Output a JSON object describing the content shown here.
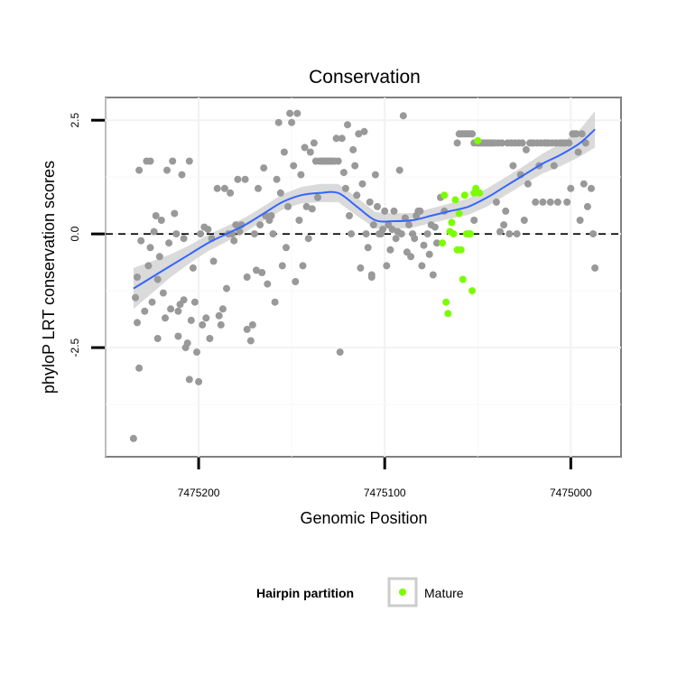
{
  "chart_data": {
    "type": "scatter",
    "title": "Conservation",
    "xlabel": "Genomic Position",
    "ylabel": "phyloP LRT conservation scores",
    "x_reversed": true,
    "xlim": [
      7475250,
      7474973
    ],
    "ylim": [
      -4.9,
      3.0
    ],
    "x_ticks": [
      7475200,
      7475100,
      7475000
    ],
    "x_tick_labels": [
      "7475200",
      "7475100",
      "7475000"
    ],
    "y_ticks": [
      2.5,
      0.0,
      -2.5
    ],
    "y_tick_labels": [
      "2.5",
      "0.0",
      "-2.5"
    ],
    "reference_line": {
      "y": 0.0,
      "style": "dashed"
    },
    "grid": true,
    "legend": {
      "title": "Hairpin partition",
      "position": "bottom",
      "entries": [
        {
          "label": "Mature",
          "color": "#7cfc00"
        }
      ]
    },
    "colors": {
      "default_points": "#999999",
      "mature": "#7cfc00",
      "smooth_line": "#3366ff",
      "ribbon": "#d4d4d4"
    },
    "series": [
      {
        "color": "#999999",
        "points": [
          [
            7475235,
            -4.5
          ],
          [
            7475234,
            -1.4
          ],
          [
            7475233,
            -1.95
          ],
          [
            7475233,
            -0.95
          ],
          [
            7475232,
            -2.95
          ],
          [
            7475232,
            1.4
          ],
          [
            7475231,
            -0.15
          ],
          [
            7475229,
            -1.7
          ],
          [
            7475228,
            1.6
          ],
          [
            7475227,
            -0.7
          ],
          [
            7475226,
            -0.3
          ],
          [
            7475226,
            1.6
          ],
          [
            7475225,
            -1.5
          ],
          [
            7475224,
            0.05
          ],
          [
            7475223,
            0.4
          ],
          [
            7475222,
            -2.3
          ],
          [
            7475222,
            -1.0
          ],
          [
            7475221,
            -0.5
          ],
          [
            7475220,
            0.3
          ],
          [
            7475219,
            -1.3
          ],
          [
            7475218,
            -1.85
          ],
          [
            7475217,
            1.4
          ],
          [
            7475216,
            -0.2
          ],
          [
            7475215,
            -1.65
          ],
          [
            7475214,
            1.6
          ],
          [
            7475213,
            0.45
          ],
          [
            7475212,
            0.0
          ],
          [
            7475211,
            -2.25
          ],
          [
            7475211,
            -1.7
          ],
          [
            7475210,
            -1.55
          ],
          [
            7475209,
            1.3
          ],
          [
            7475208,
            -0.1
          ],
          [
            7475208,
            -1.45
          ],
          [
            7475207,
            -2.5
          ],
          [
            7475206,
            -2.4
          ],
          [
            7475205,
            -3.2
          ],
          [
            7475205,
            1.6
          ],
          [
            7475204,
            -1.9
          ],
          [
            7475203,
            -0.75
          ],
          [
            7475202,
            -1.5
          ],
          [
            7475201,
            -2.6
          ],
          [
            7475200,
            -3.25
          ],
          [
            7475199,
            0.0
          ],
          [
            7475198,
            -2.0
          ],
          [
            7475197,
            0.15
          ],
          [
            7475196,
            -1.85
          ],
          [
            7475195,
            0.1
          ],
          [
            7475194,
            -2.3
          ],
          [
            7475193,
            -0.1
          ],
          [
            7475192,
            -0.6
          ],
          [
            7475190,
            1.0
          ],
          [
            7475189,
            -1.8
          ],
          [
            7475188,
            -2.0
          ],
          [
            7475187,
            -1.65
          ],
          [
            7475186,
            1.0
          ],
          [
            7475185,
            -1.2
          ],
          [
            7475184,
            0.0
          ],
          [
            7475183,
            0.9
          ],
          [
            7475182,
            0.0
          ],
          [
            7475181,
            -0.15
          ],
          [
            7475180,
            0.2
          ],
          [
            7475179,
            1.2
          ],
          [
            7475178,
            0.05
          ],
          [
            7475177,
            0.2
          ],
          [
            7475175,
            1.2
          ],
          [
            7475174,
            -0.95
          ],
          [
            7475174,
            -2.1
          ],
          [
            7475172,
            -2.35
          ],
          [
            7475171,
            -2.0
          ],
          [
            7475170,
            0.0
          ],
          [
            7475169,
            -0.8
          ],
          [
            7475168,
            1.0
          ],
          [
            7475167,
            0.2
          ],
          [
            7475166,
            -0.85
          ],
          [
            7475165,
            1.45
          ],
          [
            7475164,
            0.4
          ],
          [
            7475163,
            -1.1
          ],
          [
            7475162,
            0.3
          ],
          [
            7475161,
            0.4
          ],
          [
            7475160,
            0.0
          ],
          [
            7475159,
            -1.5
          ],
          [
            7475158,
            1.2
          ],
          [
            7475157,
            2.45
          ],
          [
            7475156,
            0.9
          ],
          [
            7475155,
            -0.7
          ],
          [
            7475154,
            1.8
          ],
          [
            7475153,
            -0.3
          ],
          [
            7475152,
            0.6
          ],
          [
            7475151,
            2.65
          ],
          [
            7475150,
            2.45
          ],
          [
            7475149,
            1.5
          ],
          [
            7475148,
            -1.05
          ],
          [
            7475147,
            2.65
          ],
          [
            7475146,
            0.3
          ],
          [
            7475145,
            1.3
          ],
          [
            7475144,
            -0.7
          ],
          [
            7475143,
            1.9
          ],
          [
            7475142,
            0.6
          ],
          [
            7475141,
            -0.1
          ],
          [
            7475140,
            1.8
          ],
          [
            7475139,
            0.55
          ],
          [
            7475138,
            2.0
          ],
          [
            7475137,
            1.6
          ],
          [
            7475136,
            0.8
          ],
          [
            7475135,
            1.6
          ],
          [
            7475134,
            1.6
          ],
          [
            7475133,
            1.6
          ],
          [
            7475132,
            1.6
          ],
          [
            7475131,
            1.6
          ],
          [
            7475130,
            1.6
          ],
          [
            7475129,
            1.6
          ],
          [
            7475128,
            1.6
          ],
          [
            7475127,
            1.6
          ],
          [
            7475126,
            2.1
          ],
          [
            7475125,
            1.6
          ],
          [
            7475124,
            -2.6
          ],
          [
            7475123,
            2.1
          ],
          [
            7475122,
            1.35
          ],
          [
            7475121,
            1.0
          ],
          [
            7475120,
            2.4
          ],
          [
            7475119,
            0.4
          ],
          [
            7475118,
            0.0
          ],
          [
            7475117,
            1.85
          ],
          [
            7475116,
            1.5
          ],
          [
            7475115,
            0.85
          ],
          [
            7475114,
            2.2
          ],
          [
            7475113,
            -0.75
          ],
          [
            7475112,
            1.1
          ],
          [
            7475111,
            2.25
          ],
          [
            7475110,
            0.0
          ],
          [
            7475109,
            -0.3
          ],
          [
            7475108,
            0.7
          ],
          [
            7475107,
            -0.9
          ],
          [
            7475107,
            -0.95
          ],
          [
            7475106,
            0.2
          ],
          [
            7475105,
            1.3
          ],
          [
            7475104,
            0.6
          ],
          [
            7475103,
            0.0
          ],
          [
            7475102,
            0.0
          ],
          [
            7475101,
            0.1
          ],
          [
            7475100,
            0.5
          ],
          [
            7475099,
            -0.7
          ],
          [
            7475098,
            0.2
          ],
          [
            7475097,
            -0.35
          ],
          [
            7475096,
            0.1
          ],
          [
            7475095,
            0.5
          ],
          [
            7475094,
            -0.1
          ],
          [
            7475093,
            0.05
          ],
          [
            7475092,
            1.4
          ],
          [
            7475091,
            0.0
          ],
          [
            7475090,
            2.6
          ],
          [
            7475089,
            0.35
          ],
          [
            7475088,
            -0.4
          ],
          [
            7475087,
            0.2
          ],
          [
            7475086,
            -0.5
          ],
          [
            7475085,
            0.0
          ],
          [
            7475084,
            -0.1
          ],
          [
            7475083,
            0.4
          ],
          [
            7475082,
            0.5
          ],
          [
            7475081,
            0.5
          ],
          [
            7475080,
            -0.7
          ],
          [
            7475079,
            -0.25
          ],
          [
            7475077,
            0.0
          ],
          [
            7475076,
            -0.45
          ],
          [
            7475075,
            0.2
          ],
          [
            7475074,
            -0.9
          ],
          [
            7475073,
            0.15
          ],
          [
            7475072,
            -0.2
          ],
          [
            7475070,
            0.8
          ],
          [
            7475068,
            0.5
          ],
          [
            7475061,
            2.0
          ],
          [
            7475060,
            2.2
          ],
          [
            7475059,
            2.2
          ],
          [
            7475058,
            2.2
          ],
          [
            7475057,
            2.2
          ],
          [
            7475056,
            2.2
          ],
          [
            7475055,
            2.2
          ],
          [
            7475054,
            2.2
          ],
          [
            7475053,
            2.2
          ],
          [
            7475052,
            2.0
          ],
          [
            7475052,
            0.3
          ],
          [
            7475051,
            0.95
          ],
          [
            7475050,
            2.0
          ],
          [
            7475049,
            2.0
          ],
          [
            7475048,
            2.0
          ],
          [
            7475047,
            2.0
          ],
          [
            7475046,
            2.0
          ],
          [
            7475045,
            2.0
          ],
          [
            7475044,
            2.0
          ],
          [
            7475043,
            2.0
          ],
          [
            7475042,
            2.0
          ],
          [
            7475041,
            2.0
          ],
          [
            7475040,
            0.7
          ],
          [
            7475039,
            2.0
          ],
          [
            7475038,
            0.05
          ],
          [
            7475037,
            2.0
          ],
          [
            7475036,
            0.2
          ],
          [
            7475035,
            0.5
          ],
          [
            7475034,
            2.0
          ],
          [
            7475033,
            0.0
          ],
          [
            7475032,
            2.0
          ],
          [
            7475031,
            1.5
          ],
          [
            7475030,
            2.0
          ],
          [
            7475029,
            0.0
          ],
          [
            7475028,
            2.0
          ],
          [
            7475027,
            1.3
          ],
          [
            7475026,
            2.0
          ],
          [
            7475025,
            0.3
          ],
          [
            7475024,
            1.85
          ],
          [
            7475023,
            1.1
          ],
          [
            7475022,
            2.0
          ],
          [
            7475021,
            2.0
          ],
          [
            7475020,
            2.0
          ],
          [
            7475019,
            0.7
          ],
          [
            7475018,
            2.0
          ],
          [
            7475017,
            1.5
          ],
          [
            7475016,
            2.0
          ],
          [
            7475015,
            0.7
          ],
          [
            7475014,
            2.0
          ],
          [
            7475013,
            2.0
          ],
          [
            7475012,
            2.0
          ],
          [
            7475011,
            0.7
          ],
          [
            7475010,
            2.0
          ],
          [
            7475009,
            1.5
          ],
          [
            7475008,
            2.0
          ],
          [
            7475007,
            0.7
          ],
          [
            7475006,
            2.0
          ],
          [
            7475005,
            2.0
          ],
          [
            7475004,
            2.0
          ],
          [
            7475003,
            2.0
          ],
          [
            7475002,
            0.7
          ],
          [
            7475001,
            2.0
          ],
          [
            7475000,
            1.0
          ],
          [
            7474999,
            2.2
          ],
          [
            7474998,
            2.2
          ],
          [
            7474997,
            2.2
          ],
          [
            7474996,
            1.8
          ],
          [
            7474995,
            0.3
          ],
          [
            7474994,
            2.2
          ],
          [
            7474993,
            1.1
          ],
          [
            7474992,
            2.0
          ],
          [
            7474991,
            0.6
          ],
          [
            7474989,
            1.0
          ],
          [
            7474988,
            0.0
          ],
          [
            7474987,
            -0.75
          ]
        ]
      },
      {
        "name": "Mature",
        "color": "#7cfc00",
        "points": [
          [
            7475069,
            -0.2
          ],
          [
            7475068,
            0.85
          ],
          [
            7475067,
            -1.5
          ],
          [
            7475066,
            -1.75
          ],
          [
            7475065,
            0.05
          ],
          [
            7475064,
            0.25
          ],
          [
            7475063,
            0.0
          ],
          [
            7475062,
            0.75
          ],
          [
            7475061,
            -0.35
          ],
          [
            7475060,
            0.45
          ],
          [
            7475059,
            -0.35
          ],
          [
            7475058,
            -1.0
          ],
          [
            7475057,
            0.85
          ],
          [
            7475056,
            0.0
          ],
          [
            7475055,
            0.0
          ],
          [
            7475054,
            0.0
          ],
          [
            7475053,
            -1.25
          ],
          [
            7475052,
            0.9
          ],
          [
            7475051,
            1.0
          ],
          [
            7475050,
            2.05
          ],
          [
            7475049,
            0.9
          ]
        ]
      }
    ],
    "smooth_line": {
      "x": [
        7475235,
        7475225,
        7475215,
        7475205,
        7475195,
        7475185,
        7475175,
        7475165,
        7475155,
        7475145,
        7475135,
        7475125,
        7475115,
        7475105,
        7475095,
        7475085,
        7475075,
        7475065,
        7475055,
        7475045,
        7475035,
        7475025,
        7475015,
        7475005,
        7474995,
        7474987
      ],
      "y": [
        -1.2,
        -0.95,
        -0.7,
        -0.45,
        -0.2,
        0.0,
        0.2,
        0.45,
        0.7,
        0.85,
        0.9,
        0.9,
        0.6,
        0.3,
        0.28,
        0.3,
        0.4,
        0.5,
        0.6,
        0.8,
        1.05,
        1.3,
        1.55,
        1.75,
        2.0,
        2.3
      ],
      "ribbon_halfwidth": [
        0.45,
        0.35,
        0.25,
        0.2,
        0.18,
        0.17,
        0.16,
        0.16,
        0.17,
        0.18,
        0.2,
        0.2,
        0.2,
        0.18,
        0.17,
        0.16,
        0.16,
        0.17,
        0.18,
        0.2,
        0.2,
        0.2,
        0.22,
        0.25,
        0.3,
        0.4
      ]
    }
  }
}
